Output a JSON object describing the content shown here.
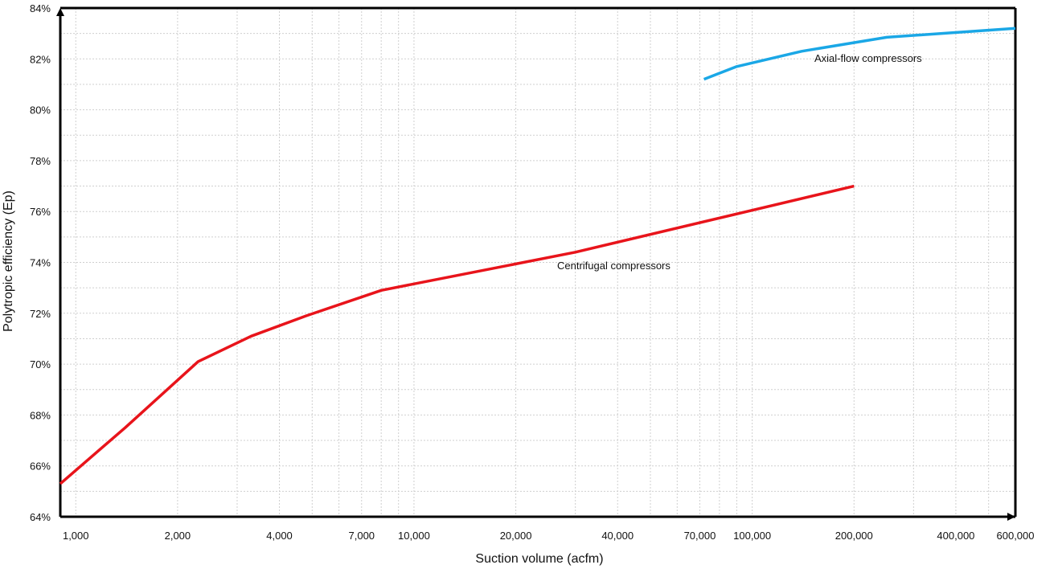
{
  "chart_data": {
    "type": "line",
    "xscale": "log",
    "xlabel": "Suction volume (acfm)",
    "ylabel": "Polytropic efficiency (Ep)",
    "xlim": [
      900,
      600000
    ],
    "ylim": [
      64,
      84
    ],
    "grid": true,
    "x_ticks": [
      {
        "value": 1000,
        "label": "1,000"
      },
      {
        "value": 2000,
        "label": "2,000"
      },
      {
        "value": 4000,
        "label": "4,000"
      },
      {
        "value": 7000,
        "label": "7,000"
      },
      {
        "value": 10000,
        "label": "10,000"
      },
      {
        "value": 20000,
        "label": "20,000"
      },
      {
        "value": 40000,
        "label": "40,000"
      },
      {
        "value": 70000,
        "label": "70,000"
      },
      {
        "value": 100000,
        "label": "100,000"
      },
      {
        "value": 200000,
        "label": "200,000"
      },
      {
        "value": 400000,
        "label": "400,000"
      },
      {
        "value": 600000,
        "label": "600,000"
      }
    ],
    "y_ticks": [
      {
        "value": 64,
        "label": "64%"
      },
      {
        "value": 66,
        "label": "66%"
      },
      {
        "value": 68,
        "label": "68%"
      },
      {
        "value": 70,
        "label": "70%"
      },
      {
        "value": 72,
        "label": "72%"
      },
      {
        "value": 74,
        "label": "74%"
      },
      {
        "value": 76,
        "label": "76%"
      },
      {
        "value": 78,
        "label": "78%"
      },
      {
        "value": 80,
        "label": "80%"
      },
      {
        "value": 82,
        "label": "82%"
      },
      {
        "value": 84,
        "label": "84%"
      }
    ],
    "series": [
      {
        "name": "Centrifugal compressors",
        "color": "#e8141b",
        "points": [
          [
            900,
            65.3
          ],
          [
            1400,
            67.5
          ],
          [
            2300,
            70.1
          ],
          [
            3300,
            71.1
          ],
          [
            4800,
            71.9
          ],
          [
            8000,
            72.9
          ],
          [
            30000,
            74.4
          ],
          [
            200000,
            77.0
          ]
        ]
      },
      {
        "name": "Axial-flow compressors",
        "color": "#1aa7e6",
        "points": [
          [
            72000,
            81.2
          ],
          [
            90000,
            81.7
          ],
          [
            140000,
            82.3
          ],
          [
            250000,
            82.85
          ],
          [
            600000,
            83.2
          ]
        ]
      }
    ],
    "annotations": [
      {
        "series": 0,
        "text": "Centrifugal compressors"
      },
      {
        "series": 1,
        "text": "Axial-flow compressors"
      }
    ]
  }
}
